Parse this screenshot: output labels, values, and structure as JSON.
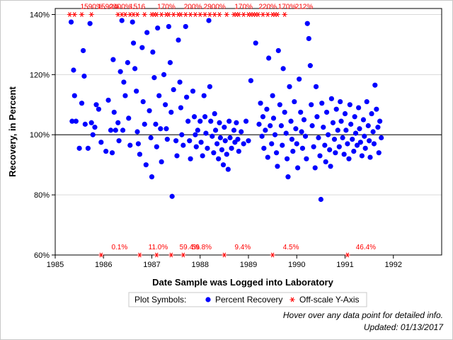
{
  "chart_data": {
    "type": "scatter",
    "title": "",
    "xlabel": "Date Sample was Logged into Laboratory",
    "ylabel": "Recovery, in Percent",
    "xlim": [
      1985,
      1993
    ],
    "ylim": [
      60,
      142
    ],
    "x_ticks": [
      "1985",
      "1986",
      "1987",
      "1988",
      "1989",
      "1990",
      "1991",
      "1992"
    ],
    "y_ticks": [
      "60%",
      "80%",
      "100%",
      "120%",
      "140%"
    ],
    "y_tick_values": [
      60,
      80,
      100,
      120,
      140
    ],
    "reference_line": 100,
    "grid": true,
    "legend": {
      "position": "bottom",
      "title": "Plot Symbols:",
      "entries": [
        {
          "label": "Percent Recovery",
          "symbol": "dot",
          "color": "#0000ff"
        },
        {
          "label": "Off-scale Y-Axis",
          "symbol": "star",
          "color": "#ff0000"
        }
      ]
    },
    "colors": {
      "recovery": "#0000ff",
      "offscale": "#ff0000",
      "grid": "#d9d9d9"
    },
    "low_offscale": [
      {
        "x": 1985.95,
        "label": "0.1%"
      },
      {
        "x": 1986.75,
        "label": "11.0%"
      },
      {
        "x": 1987.1,
        "label": ""
      },
      {
        "x": 1987.4,
        "label": "59.4%"
      },
      {
        "x": 1987.65,
        "label": "59.8%"
      },
      {
        "x": 1988.5,
        "label": "9.4%"
      },
      {
        "x": 1989.5,
        "label": "4.5%"
      },
      {
        "x": 1991.05,
        "label": "46.4%"
      }
    ],
    "high_offscale_x": [
      1985.3,
      1985.4,
      1985.55,
      1985.75,
      1986.3,
      1986.38,
      1986.45,
      1986.55,
      1986.62,
      1986.7,
      1986.85,
      1987.0,
      1987.05,
      1987.1,
      1987.2,
      1987.3,
      1987.35,
      1987.45,
      1987.55,
      1987.6,
      1987.7,
      1987.8,
      1987.9,
      1988.0,
      1988.1,
      1988.2,
      1988.3,
      1988.4,
      1988.55,
      1988.7,
      1988.75,
      1988.8,
      1988.9,
      1989.0,
      1989.05,
      1989.1,
      1989.15,
      1989.2,
      1989.3,
      1989.4,
      1989.5,
      1989.55,
      1989.6,
      1989.75
    ],
    "high_offscale_labels": [
      {
        "x": 1985.75,
        "label": "1590%"
      },
      {
        "x": 1986.1,
        "label": "1590%"
      },
      {
        "x": 1986.35,
        "label": "2400%"
      },
      {
        "x": 1986.7,
        "label": "1516"
      },
      {
        "x": 1987.3,
        "label": "170%"
      },
      {
        "x": 1987.85,
        "label": "200%"
      },
      {
        "x": 1988.3,
        "label": "2900%"
      },
      {
        "x": 1988.9,
        "label": "170%"
      },
      {
        "x": 1989.4,
        "label": "220%"
      },
      {
        "x": 1989.8,
        "label": "170%"
      },
      {
        "x": 1990.15,
        "label": "212%"
      }
    ],
    "series": [
      {
        "name": "Percent Recovery",
        "points": [
          [
            1985.33,
            137.5
          ],
          [
            1985.35,
            104.5
          ],
          [
            1985.38,
            121.5
          ],
          [
            1985.4,
            113.0
          ],
          [
            1985.43,
            104.5
          ],
          [
            1985.5,
            95.5
          ],
          [
            1985.55,
            110.5
          ],
          [
            1985.58,
            128.0
          ],
          [
            1985.6,
            119.5
          ],
          [
            1985.62,
            103.5
          ],
          [
            1985.68,
            95.5
          ],
          [
            1985.72,
            137.0
          ],
          [
            1985.75,
            104.0
          ],
          [
            1985.78,
            100.0
          ],
          [
            1985.82,
            102.5
          ],
          [
            1985.85,
            110.0
          ],
          [
            1985.9,
            108.5
          ],
          [
            1985.95,
            97.5
          ],
          [
            1986.05,
            94.5
          ],
          [
            1986.1,
            111.5
          ],
          [
            1986.15,
            101.5
          ],
          [
            1986.18,
            94.0
          ],
          [
            1986.2,
            125.0
          ],
          [
            1986.22,
            107.5
          ],
          [
            1986.25,
            101.5
          ],
          [
            1986.3,
            104.0
          ],
          [
            1986.32,
            98.0
          ],
          [
            1986.35,
            121.0
          ],
          [
            1986.38,
            138.0
          ],
          [
            1986.4,
            101.5
          ],
          [
            1986.42,
            117.5
          ],
          [
            1986.45,
            113.0
          ],
          [
            1986.5,
            124.0
          ],
          [
            1986.52,
            105.5
          ],
          [
            1986.55,
            96.5
          ],
          [
            1986.6,
            137.5
          ],
          [
            1986.62,
            130.5
          ],
          [
            1986.65,
            122.0
          ],
          [
            1986.68,
            114.5
          ],
          [
            1986.7,
            101.0
          ],
          [
            1986.72,
            97.0
          ],
          [
            1986.75,
            93.5
          ],
          [
            1986.8,
            129.0
          ],
          [
            1986.82,
            111.0
          ],
          [
            1986.85,
            103.5
          ],
          [
            1986.88,
            90.0
          ],
          [
            1986.9,
            134.0
          ],
          [
            1986.95,
            108.0
          ],
          [
            1986.98,
            99.0
          ],
          [
            1987.0,
            86.0
          ],
          [
            1987.02,
            127.5
          ],
          [
            1987.05,
            119.0
          ],
          [
            1987.08,
            103.5
          ],
          [
            1987.1,
            96.0
          ],
          [
            1987.12,
            135.5
          ],
          [
            1987.15,
            113.0
          ],
          [
            1987.18,
            102.0
          ],
          [
            1987.2,
            91.0
          ],
          [
            1987.25,
            120.0
          ],
          [
            1987.28,
            110.0
          ],
          [
            1987.3,
            102.0
          ],
          [
            1987.32,
            98.5
          ],
          [
            1987.35,
            136.0
          ],
          [
            1987.38,
            124.0
          ],
          [
            1987.4,
            107.5
          ],
          [
            1987.42,
            79.5
          ],
          [
            1987.45,
            115.0
          ],
          [
            1987.5,
            98.0
          ],
          [
            1987.52,
            93.0
          ],
          [
            1987.55,
            131.5
          ],
          [
            1987.58,
            117.5
          ],
          [
            1987.6,
            109.0
          ],
          [
            1987.62,
            100.0
          ],
          [
            1987.65,
            96.5
          ],
          [
            1987.7,
            136.0
          ],
          [
            1987.72,
            112.5
          ],
          [
            1987.75,
            104.5
          ],
          [
            1987.78,
            98.0
          ],
          [
            1987.8,
            92.0
          ],
          [
            1987.85,
            114.5
          ],
          [
            1987.88,
            106.0
          ],
          [
            1987.9,
            100.0
          ],
          [
            1987.92,
            96.0
          ],
          [
            1987.95,
            101.5
          ],
          [
            1988.0,
            104.5
          ],
          [
            1988.02,
            97.5
          ],
          [
            1988.05,
            93.0
          ],
          [
            1988.08,
            113.0
          ],
          [
            1988.1,
            106.0
          ],
          [
            1988.12,
            100.5
          ],
          [
            1988.15,
            95.5
          ],
          [
            1988.18,
            138.0
          ],
          [
            1988.2,
            116.0
          ],
          [
            1988.22,
            104.5
          ],
          [
            1988.25,
            99.5
          ],
          [
            1988.28,
            94.0
          ],
          [
            1988.3,
            107.0
          ],
          [
            1988.32,
            101.5
          ],
          [
            1988.35,
            97.0
          ],
          [
            1988.38,
            92.0
          ],
          [
            1988.4,
            104.0
          ],
          [
            1988.42,
            99.0
          ],
          [
            1988.45,
            95.0
          ],
          [
            1988.48,
            90.0
          ],
          [
            1988.5,
            102.5
          ],
          [
            1988.52,
            98.0
          ],
          [
            1988.55,
            93.5
          ],
          [
            1988.58,
            88.5
          ],
          [
            1988.6,
            104.5
          ],
          [
            1988.62,
            99.0
          ],
          [
            1988.65,
            95.5
          ],
          [
            1988.7,
            101.5
          ],
          [
            1988.72,
            97.5
          ],
          [
            1988.75,
            104.0
          ],
          [
            1988.78,
            98.5
          ],
          [
            1988.8,
            94.5
          ],
          [
            1988.85,
            101.0
          ],
          [
            1988.9,
            97.0
          ],
          [
            1988.95,
            104.5
          ],
          [
            1989.0,
            98.0
          ],
          [
            1989.05,
            118.0
          ],
          [
            1989.15,
            130.5
          ],
          [
            1989.22,
            103.5
          ],
          [
            1989.25,
            110.5
          ],
          [
            1989.28,
            99.5
          ],
          [
            1989.3,
            106.0
          ],
          [
            1989.32,
            95.5
          ],
          [
            1989.35,
            101.5
          ],
          [
            1989.38,
            108.5
          ],
          [
            1989.4,
            92.5
          ],
          [
            1989.42,
            125.5
          ],
          [
            1989.45,
            103.0
          ],
          [
            1989.48,
            97.0
          ],
          [
            1989.5,
            113.0
          ],
          [
            1989.52,
            105.5
          ],
          [
            1989.55,
            100.0
          ],
          [
            1989.58,
            94.0
          ],
          [
            1989.6,
            89.5
          ],
          [
            1989.62,
            128.0
          ],
          [
            1989.65,
            110.0
          ],
          [
            1989.68,
            103.0
          ],
          [
            1989.7,
            96.5
          ],
          [
            1989.72,
            122.0
          ],
          [
            1989.75,
            107.5
          ],
          [
            1989.78,
            100.5
          ],
          [
            1989.8,
            92.0
          ],
          [
            1989.82,
            86.0
          ],
          [
            1989.85,
            116.0
          ],
          [
            1989.88,
            104.5
          ],
          [
            1989.9,
            98.5
          ],
          [
            1989.92,
            94.5
          ],
          [
            1989.95,
            111.0
          ],
          [
            1989.98,
            102.0
          ],
          [
            1990.0,
            97.0
          ],
          [
            1990.02,
            89.0
          ],
          [
            1990.05,
            118.5
          ],
          [
            1990.08,
            107.5
          ],
          [
            1990.1,
            101.0
          ],
          [
            1990.12,
            95.5
          ],
          [
            1990.15,
            105.0
          ],
          [
            1990.18,
            99.5
          ],
          [
            1990.2,
            92.0
          ],
          [
            1990.22,
            137.0
          ],
          [
            1990.25,
            132.0
          ],
          [
            1990.28,
            123.0
          ],
          [
            1990.3,
            110.0
          ],
          [
            1990.32,
            103.0
          ],
          [
            1990.35,
            96.0
          ],
          [
            1990.38,
            89.0
          ],
          [
            1990.4,
            116.0
          ],
          [
            1990.42,
            106.0
          ],
          [
            1990.45,
            99.0
          ],
          [
            1990.48,
            93.0
          ],
          [
            1990.5,
            78.5
          ],
          [
            1990.52,
            110.5
          ],
          [
            1990.55,
            102.5
          ],
          [
            1990.58,
            96.5
          ],
          [
            1990.6,
            91.0
          ],
          [
            1990.62,
            107.5
          ],
          [
            1990.65,
            100.0
          ],
          [
            1990.68,
            95.0
          ],
          [
            1990.7,
            89.5
          ],
          [
            1990.72,
            112.0
          ],
          [
            1990.75,
            104.0
          ],
          [
            1990.78,
            98.5
          ],
          [
            1990.8,
            94.0
          ],
          [
            1990.82,
            108.5
          ],
          [
            1990.85,
            101.5
          ],
          [
            1990.88,
            96.0
          ],
          [
            1990.9,
            111.0
          ],
          [
            1990.92,
            104.5
          ],
          [
            1990.95,
            99.0
          ],
          [
            1990.98,
            93.5
          ],
          [
            1991.0,
            107.0
          ],
          [
            1991.02,
            101.5
          ],
          [
            1991.05,
            97.0
          ],
          [
            1991.08,
            92.0
          ],
          [
            1991.1,
            110.0
          ],
          [
            1991.12,
            103.5
          ],
          [
            1991.15,
            98.5
          ],
          [
            1991.18,
            94.5
          ],
          [
            1991.2,
            106.0
          ],
          [
            1991.22,
            100.5
          ],
          [
            1991.25,
            96.5
          ],
          [
            1991.28,
            109.0
          ],
          [
            1991.3,
            102.0
          ],
          [
            1991.32,
            97.5
          ],
          [
            1991.35,
            93.0
          ],
          [
            1991.38,
            105.0
          ],
          [
            1991.4,
            99.5
          ],
          [
            1991.42,
            95.5
          ],
          [
            1991.45,
            111.0
          ],
          [
            1991.48,
            103.0
          ],
          [
            1991.5,
            98.0
          ],
          [
            1991.52,
            92.5
          ],
          [
            1991.55,
            107.0
          ],
          [
            1991.58,
            101.0
          ],
          [
            1991.6,
            97.0
          ],
          [
            1991.62,
            116.5
          ],
          [
            1991.65,
            108.5
          ],
          [
            1991.68,
            102.5
          ],
          [
            1991.7,
            94.0
          ],
          [
            1991.72,
            104.5
          ],
          [
            1991.75,
            99.0
          ]
        ]
      }
    ],
    "legend_title_text": "Plot Symbols:"
  },
  "footnotes": {
    "hover": "Hover over any data point for detailed info.",
    "updated": "Updated: 01/13/2017"
  }
}
